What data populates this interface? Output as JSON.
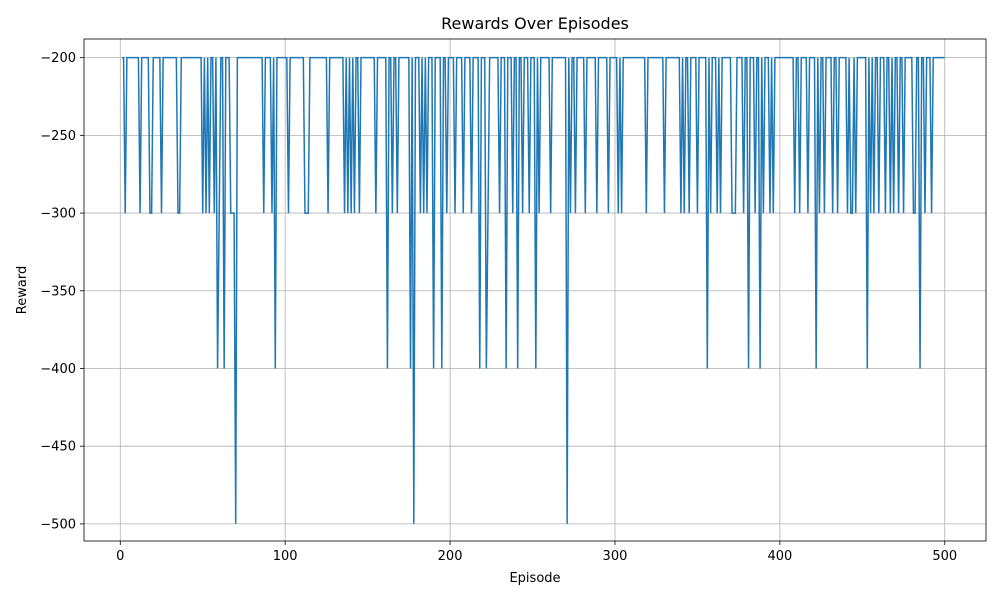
{
  "chart_data": {
    "type": "line",
    "title": "Rewards Over Episodes",
    "xlabel": "Episode",
    "ylabel": "Reward",
    "xlim": [
      -22,
      525
    ],
    "ylim": [
      -511,
      -188
    ],
    "xticks": [
      0,
      100,
      200,
      300,
      400,
      500
    ],
    "yticks": [
      -500,
      -450,
      -400,
      -350,
      -300,
      -250,
      -200
    ],
    "ytick_labels": [
      "−500",
      "−450",
      "−400",
      "−350",
      "−300",
      "−250",
      "−200"
    ],
    "grid": true,
    "line_color": "#1f77b4",
    "dips": [
      [
        3,
        -300
      ],
      [
        12,
        -300
      ],
      [
        18,
        -300
      ],
      [
        19,
        -300
      ],
      [
        25,
        -300
      ],
      [
        35,
        -300
      ],
      [
        36,
        -300
      ],
      [
        50,
        -300
      ],
      [
        52,
        -300
      ],
      [
        54,
        -300
      ],
      [
        57,
        -300
      ],
      [
        59,
        -400
      ],
      [
        60,
        -300
      ],
      [
        63,
        -400
      ],
      [
        67,
        -300
      ],
      [
        68,
        -300
      ],
      [
        69,
        -300
      ],
      [
        70,
        -500
      ],
      [
        87,
        -300
      ],
      [
        92,
        -300
      ],
      [
        94,
        -400
      ],
      [
        102,
        -300
      ],
      [
        112,
        -300
      ],
      [
        113,
        -300
      ],
      [
        114,
        -300
      ],
      [
        126,
        -300
      ],
      [
        136,
        -300
      ],
      [
        138,
        -300
      ],
      [
        140,
        -300
      ],
      [
        142,
        -300
      ],
      [
        145,
        -300
      ],
      [
        155,
        -300
      ],
      [
        162,
        -400
      ],
      [
        165,
        -300
      ],
      [
        168,
        -300
      ],
      [
        176,
        -400
      ],
      [
        178,
        -500
      ],
      [
        182,
        -300
      ],
      [
        184,
        -300
      ],
      [
        186,
        -300
      ],
      [
        190,
        -400
      ],
      [
        195,
        -400
      ],
      [
        198,
        -300
      ],
      [
        203,
        -300
      ],
      [
        208,
        -300
      ],
      [
        213,
        -300
      ],
      [
        218,
        -400
      ],
      [
        222,
        -400
      ],
      [
        223,
        -300
      ],
      [
        230,
        -300
      ],
      [
        234,
        -400
      ],
      [
        238,
        -300
      ],
      [
        241,
        -400
      ],
      [
        244,
        -300
      ],
      [
        248,
        -300
      ],
      [
        252,
        -400
      ],
      [
        254,
        -300
      ],
      [
        261,
        -300
      ],
      [
        271,
        -500
      ],
      [
        273,
        -300
      ],
      [
        276,
        -300
      ],
      [
        282,
        -300
      ],
      [
        289,
        -300
      ],
      [
        296,
        -300
      ],
      [
        302,
        -300
      ],
      [
        304,
        -300
      ],
      [
        319,
        -300
      ],
      [
        330,
        -300
      ],
      [
        340,
        -300
      ],
      [
        342,
        -300
      ],
      [
        345,
        -300
      ],
      [
        350,
        -300
      ],
      [
        356,
        -400
      ],
      [
        358,
        -300
      ],
      [
        362,
        -300
      ],
      [
        364,
        -300
      ],
      [
        371,
        -300
      ],
      [
        372,
        -300
      ],
      [
        373,
        -300
      ],
      [
        378,
        -300
      ],
      [
        381,
        -400
      ],
      [
        385,
        -300
      ],
      [
        388,
        -400
      ],
      [
        390,
        -300
      ],
      [
        394,
        -300
      ],
      [
        396,
        -300
      ],
      [
        409,
        -300
      ],
      [
        412,
        -300
      ],
      [
        417,
        -300
      ],
      [
        422,
        -400
      ],
      [
        424,
        -300
      ],
      [
        427,
        -300
      ],
      [
        432,
        -300
      ],
      [
        435,
        -300
      ],
      [
        441,
        -300
      ],
      [
        443,
        -300
      ],
      [
        444,
        -300
      ],
      [
        446,
        -300
      ],
      [
        453,
        -400
      ],
      [
        455,
        -300
      ],
      [
        457,
        -300
      ],
      [
        460,
        -300
      ],
      [
        464,
        -300
      ],
      [
        467,
        -300
      ],
      [
        469,
        -300
      ],
      [
        472,
        -300
      ],
      [
        475,
        -300
      ],
      [
        481,
        -300
      ],
      [
        482,
        -300
      ],
      [
        485,
        -400
      ],
      [
        488,
        -300
      ],
      [
        492,
        -300
      ]
    ],
    "n_episodes": 500,
    "baseline": -200
  }
}
